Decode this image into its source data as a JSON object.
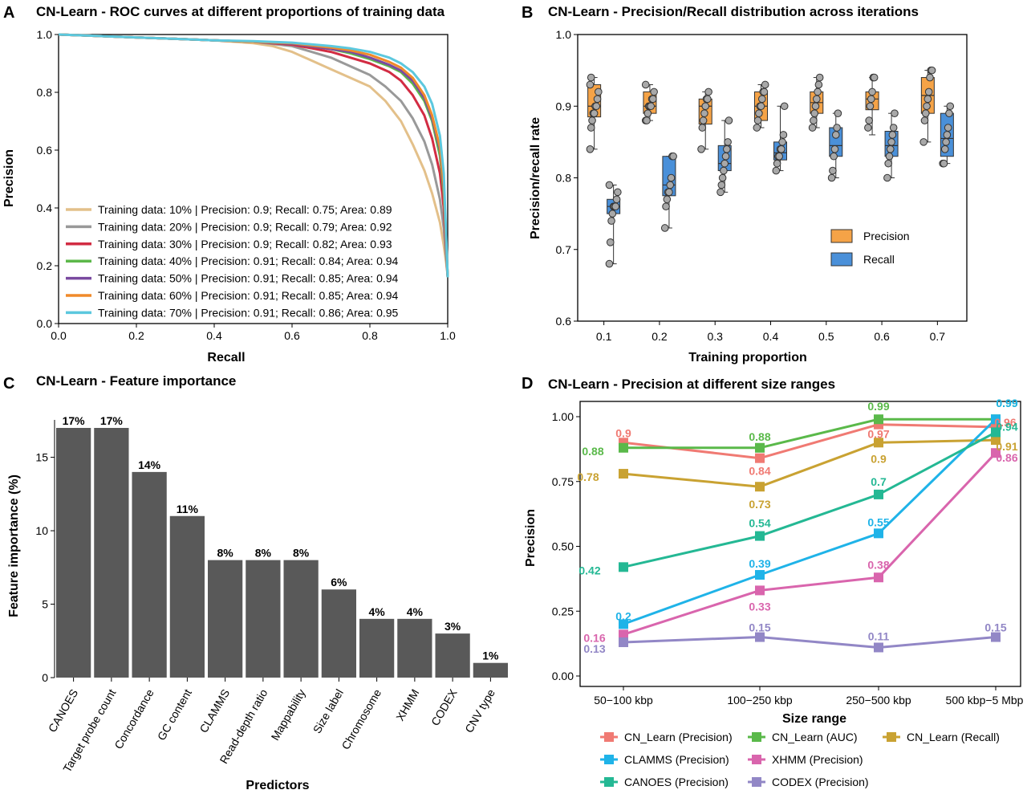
{
  "panels": {
    "A": {
      "letter": "A",
      "chart_data": {
        "type": "line",
        "title": "CN-Learn - ROC curves at different proportions of training data",
        "xlabel": "Recall",
        "ylabel": "Precision",
        "xlim": [
          0,
          1
        ],
        "ylim": [
          0,
          1
        ],
        "xticks": [
          "0.0",
          "0.2",
          "0.4",
          "0.6",
          "0.8",
          "1.0"
        ],
        "yticks": [
          "0.0",
          "0.2",
          "0.4",
          "0.6",
          "0.8",
          "1.0"
        ],
        "legend_position": "bottom-left",
        "series": [
          {
            "name": "Training data: 10% | Precision: 0.9; Recall: 0.75; Area: 0.89",
            "color": "#e3c08a",
            "x": [
              0,
              0.1,
              0.2,
              0.3,
              0.4,
              0.5,
              0.55,
              0.6,
              0.65,
              0.7,
              0.75,
              0.8,
              0.84,
              0.88,
              0.91,
              0.94,
              0.96,
              0.98,
              0.99,
              1.0
            ],
            "y": [
              1.0,
              0.995,
              0.99,
              0.985,
              0.98,
              0.97,
              0.96,
              0.94,
              0.91,
              0.88,
              0.85,
              0.82,
              0.77,
              0.7,
              0.62,
              0.53,
              0.45,
              0.35,
              0.27,
              0.17
            ]
          },
          {
            "name": "Training data: 20% | Precision: 0.9; Recall: 0.79; Area: 0.92",
            "color": "#999999",
            "x": [
              0,
              0.1,
              0.2,
              0.3,
              0.4,
              0.5,
              0.6,
              0.65,
              0.7,
              0.75,
              0.8,
              0.84,
              0.88,
              0.91,
              0.94,
              0.96,
              0.98,
              0.99,
              1.0
            ],
            "y": [
              1.0,
              0.995,
              0.99,
              0.985,
              0.98,
              0.975,
              0.96,
              0.94,
              0.92,
              0.89,
              0.86,
              0.82,
              0.77,
              0.71,
              0.63,
              0.55,
              0.43,
              0.33,
              0.16
            ]
          },
          {
            "name": "Training data: 30% | Precision: 0.9; Recall: 0.82; Area: 0.93",
            "color": "#d22c43",
            "x": [
              0,
              0.1,
              0.2,
              0.3,
              0.4,
              0.5,
              0.6,
              0.7,
              0.75,
              0.8,
              0.85,
              0.88,
              0.91,
              0.94,
              0.96,
              0.98,
              0.99,
              1.0
            ],
            "y": [
              1.0,
              0.995,
              0.99,
              0.985,
              0.98,
              0.975,
              0.965,
              0.94,
              0.92,
              0.9,
              0.87,
              0.84,
              0.79,
              0.72,
              0.64,
              0.52,
              0.4,
              0.16
            ]
          },
          {
            "name": "Training data: 40% | Precision: 0.91; Recall: 0.84; Area: 0.94",
            "color": "#5cb84a",
            "x": [
              0,
              0.1,
              0.2,
              0.3,
              0.4,
              0.5,
              0.6,
              0.7,
              0.75,
              0.8,
              0.85,
              0.88,
              0.91,
              0.94,
              0.96,
              0.98,
              0.99,
              1.0
            ],
            "y": [
              1.0,
              0.995,
              0.99,
              0.985,
              0.98,
              0.975,
              0.968,
              0.95,
              0.935,
              0.915,
              0.89,
              0.87,
              0.83,
              0.77,
              0.7,
              0.58,
              0.45,
              0.16
            ]
          },
          {
            "name": "Training data: 50% | Precision: 0.91; Recall: 0.85; Area: 0.94",
            "color": "#7a4aa0",
            "x": [
              0,
              0.1,
              0.2,
              0.3,
              0.4,
              0.5,
              0.6,
              0.7,
              0.75,
              0.8,
              0.85,
              0.88,
              0.91,
              0.94,
              0.96,
              0.98,
              0.99,
              1.0
            ],
            "y": [
              1.0,
              0.995,
              0.99,
              0.985,
              0.98,
              0.975,
              0.968,
              0.95,
              0.94,
              0.92,
              0.895,
              0.875,
              0.84,
              0.78,
              0.71,
              0.6,
              0.47,
              0.16
            ]
          },
          {
            "name": "Training data: 60% | Precision: 0.91; Recall: 0.85; Area: 0.94",
            "color": "#f08a2a",
            "x": [
              0,
              0.1,
              0.2,
              0.3,
              0.4,
              0.5,
              0.6,
              0.7,
              0.75,
              0.8,
              0.85,
              0.88,
              0.91,
              0.94,
              0.96,
              0.98,
              0.99,
              1.0
            ],
            "y": [
              1.0,
              0.995,
              0.99,
              0.985,
              0.98,
              0.975,
              0.97,
              0.955,
              0.945,
              0.93,
              0.905,
              0.885,
              0.85,
              0.79,
              0.72,
              0.61,
              0.48,
              0.16
            ]
          },
          {
            "name": "Training data: 70% | Precision: 0.91; Recall: 0.86; Area: 0.95",
            "color": "#5cc8de",
            "x": [
              0,
              0.1,
              0.2,
              0.3,
              0.4,
              0.5,
              0.6,
              0.7,
              0.75,
              0.8,
              0.85,
              0.88,
              0.91,
              0.94,
              0.96,
              0.98,
              0.99,
              1.0
            ],
            "y": [
              1.0,
              0.995,
              0.99,
              0.985,
              0.98,
              0.977,
              0.972,
              0.96,
              0.952,
              0.94,
              0.92,
              0.9,
              0.87,
              0.82,
              0.76,
              0.65,
              0.52,
              0.16
            ]
          }
        ]
      }
    },
    "B": {
      "letter": "B",
      "chart_data": {
        "type": "box",
        "title": "CN-Learn - Precision/Recall distribution across iterations",
        "xlabel": "Training proportion",
        "ylabel": "Precision/recall rate",
        "ylim": [
          0.6,
          1.0
        ],
        "yticks": [
          "0.6",
          "0.7",
          "0.8",
          "0.9",
          "1.0"
        ],
        "categories": [
          "0.1",
          "0.2",
          "0.3",
          "0.4",
          "0.5",
          "0.6",
          "0.7"
        ],
        "legend_position": "right",
        "series": [
          {
            "name": "Precision",
            "color": "#f5a347",
            "boxes": [
              {
                "min": 0.84,
                "q1": 0.885,
                "median": 0.9,
                "q3": 0.93,
                "max": 0.94,
                "points": [
                  0.84,
                  0.87,
                  0.88,
                  0.89,
                  0.89,
                  0.9,
                  0.9,
                  0.91,
                  0.92,
                  0.93,
                  0.94
                ]
              },
              {
                "min": 0.88,
                "q1": 0.89,
                "median": 0.9,
                "q3": 0.92,
                "max": 0.93,
                "points": [
                  0.88,
                  0.88,
                  0.89,
                  0.9,
                  0.9,
                  0.9,
                  0.91,
                  0.91,
                  0.92,
                  0.93
                ]
              },
              {
                "min": 0.84,
                "q1": 0.875,
                "median": 0.9,
                "q3": 0.91,
                "max": 0.92,
                "points": [
                  0.84,
                  0.87,
                  0.88,
                  0.89,
                  0.9,
                  0.91,
                  0.91,
                  0.92
                ]
              },
              {
                "min": 0.87,
                "q1": 0.88,
                "median": 0.9,
                "q3": 0.92,
                "max": 0.93,
                "points": [
                  0.87,
                  0.88,
                  0.89,
                  0.9,
                  0.9,
                  0.91,
                  0.92,
                  0.92,
                  0.93
                ]
              },
              {
                "min": 0.87,
                "q1": 0.89,
                "median": 0.905,
                "q3": 0.92,
                "max": 0.94,
                "points": [
                  0.87,
                  0.88,
                  0.89,
                  0.9,
                  0.91,
                  0.92,
                  0.93,
                  0.94
                ]
              },
              {
                "min": 0.86,
                "q1": 0.895,
                "median": 0.91,
                "q3": 0.92,
                "max": 0.94,
                "points": [
                  0.87,
                  0.88,
                  0.9,
                  0.91,
                  0.92,
                  0.94,
                  0.94
                ]
              },
              {
                "min": 0.85,
                "q1": 0.89,
                "median": 0.915,
                "q3": 0.94,
                "max": 0.95,
                "points": [
                  0.85,
                  0.88,
                  0.89,
                  0.9,
                  0.91,
                  0.92,
                  0.94,
                  0.95,
                  0.95
                ]
              }
            ]
          },
          {
            "name": "Recall",
            "color": "#4a90d9",
            "boxes": [
              {
                "min": 0.68,
                "q1": 0.75,
                "median": 0.76,
                "q3": 0.77,
                "max": 0.79,
                "points": [
                  0.68,
                  0.71,
                  0.74,
                  0.75,
                  0.76,
                  0.76,
                  0.76,
                  0.77,
                  0.78,
                  0.79
                ]
              },
              {
                "min": 0.73,
                "q1": 0.775,
                "median": 0.79,
                "q3": 0.83,
                "max": 0.83,
                "points": [
                  0.73,
                  0.76,
                  0.77,
                  0.78,
                  0.78,
                  0.79,
                  0.8,
                  0.83,
                  0.83
                ]
              },
              {
                "min": 0.78,
                "q1": 0.81,
                "median": 0.82,
                "q3": 0.845,
                "max": 0.88,
                "points": [
                  0.78,
                  0.79,
                  0.8,
                  0.81,
                  0.82,
                  0.83,
                  0.84,
                  0.85,
                  0.88
                ]
              },
              {
                "min": 0.81,
                "q1": 0.825,
                "median": 0.835,
                "q3": 0.85,
                "max": 0.9,
                "points": [
                  0.81,
                  0.82,
                  0.83,
                  0.83,
                  0.84,
                  0.84,
                  0.85,
                  0.86,
                  0.9
                ]
              },
              {
                "min": 0.8,
                "q1": 0.83,
                "median": 0.845,
                "q3": 0.87,
                "max": 0.89,
                "points": [
                  0.8,
                  0.81,
                  0.83,
                  0.84,
                  0.86,
                  0.87,
                  0.89
                ]
              },
              {
                "min": 0.8,
                "q1": 0.83,
                "median": 0.845,
                "q3": 0.865,
                "max": 0.89,
                "points": [
                  0.8,
                  0.82,
                  0.83,
                  0.84,
                  0.85,
                  0.86,
                  0.87,
                  0.89
                ]
              },
              {
                "min": 0.82,
                "q1": 0.83,
                "median": 0.855,
                "q3": 0.89,
                "max": 0.9,
                "points": [
                  0.82,
                  0.82,
                  0.84,
                  0.85,
                  0.86,
                  0.87,
                  0.89,
                  0.9
                ]
              }
            ]
          }
        ]
      }
    },
    "C": {
      "letter": "C",
      "chart_data": {
        "type": "bar",
        "title": "CN-Learn - Feature importance",
        "xlabel": "Predictors",
        "ylabel": "Feature importance (%)",
        "ylim": [
          0,
          17
        ],
        "yticks": [
          "0",
          "5",
          "10",
          "15"
        ],
        "bar_color": "#595959",
        "categories": [
          "CANOES",
          "Target probe count",
          "Concordance",
          "GC content",
          "CLAMMS",
          "Read-depth ratio",
          "Mappability",
          "Size label",
          "Chromosome",
          "XHMM",
          "CODEX",
          "CNV type"
        ],
        "values": [
          17,
          17,
          14,
          11,
          8,
          8,
          8,
          6,
          4,
          4,
          3,
          1
        ],
        "value_labels": [
          "17%",
          "17%",
          "14%",
          "11%",
          "8%",
          "8%",
          "8%",
          "6%",
          "4%",
          "4%",
          "3%",
          "1%"
        ]
      }
    },
    "D": {
      "letter": "D",
      "chart_data": {
        "type": "line",
        "title": "CN-Learn - Precision at different size ranges",
        "xlabel": "Size range",
        "ylabel": "Precision",
        "ylim": [
          0,
          1
        ],
        "yticks": [
          "0.00",
          "0.25",
          "0.50",
          "0.75",
          "1.00"
        ],
        "categories": [
          "50−100 kbp",
          "100−250 kbp",
          "250−500 kbp",
          "500 kbp−5 Mbp"
        ],
        "legend_position": "bottom",
        "series": [
          {
            "name": "CN_Learn (Precision)",
            "color": "#f07a73",
            "values": [
              0.9,
              0.84,
              0.97,
              0.96
            ],
            "labels": [
              "0.9",
              "0.84",
              "0.97",
              "0.96"
            ]
          },
          {
            "name": "CN_Learn (AUC)",
            "color": "#5ab94a",
            "values": [
              0.88,
              0.88,
              0.99,
              0.99
            ],
            "labels": [
              "0.88",
              "0.88",
              "0.99",
              "0.99"
            ]
          },
          {
            "name": "CN_Learn (Recall)",
            "color": "#c9a232",
            "values": [
              0.78,
              0.73,
              0.9,
              0.91
            ],
            "labels": [
              "0.78",
              "0.73",
              "0.9",
              "0.91"
            ]
          },
          {
            "name": "CLAMMS (Precision)",
            "color": "#1fb3e8",
            "values": [
              0.2,
              0.39,
              0.55,
              0.99
            ],
            "labels": [
              "0.2",
              "0.39",
              "0.55",
              "0.99"
            ]
          },
          {
            "name": "XHMM (Precision)",
            "color": "#d965ad",
            "values": [
              0.16,
              0.33,
              0.38,
              0.86
            ],
            "labels": [
              "0.16",
              "0.33",
              "0.38",
              "0.86"
            ]
          },
          {
            "name": "CANOES (Precision)",
            "color": "#24b894",
            "values": [
              0.42,
              0.54,
              0.7,
              0.94
            ],
            "labels": [
              "0.42",
              "0.54",
              "0.7",
              "0.94"
            ]
          },
          {
            "name": "CODEX (Precision)",
            "color": "#9287c6",
            "values": [
              0.13,
              0.15,
              0.11,
              0.15
            ],
            "labels": [
              "0.13",
              "0.15",
              "0.11",
              "0.15"
            ]
          }
        ]
      }
    }
  }
}
